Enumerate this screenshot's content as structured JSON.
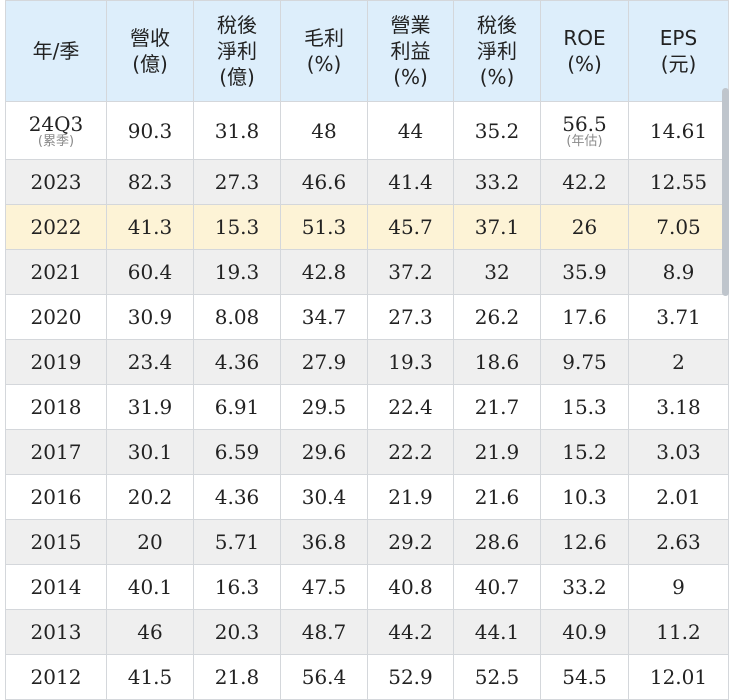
{
  "headers": [
    [
      "年/季"
    ],
    [
      "營收",
      "(億)"
    ],
    [
      "稅後",
      "淨利",
      "(億)"
    ],
    [
      "毛利",
      "(%)"
    ],
    [
      "營業",
      "利益",
      "(%)"
    ],
    [
      "稅後",
      "淨利",
      "(%)"
    ],
    [
      "ROE",
      "(%)"
    ],
    [
      "EPS",
      "(元)"
    ]
  ],
  "first_row": {
    "period": "24Q3",
    "period_note": "(累季)",
    "revenue": "90.3",
    "net_income": "31.8",
    "gross_margin": "48",
    "operating_margin": "44",
    "net_margin": "35.2",
    "roe": "56.5",
    "roe_note": "(年估)",
    "eps": "14.61"
  },
  "rows": [
    [
      "2023",
      "82.3",
      "27.3",
      "46.6",
      "41.4",
      "33.2",
      "42.2",
      "12.55"
    ],
    [
      "2022",
      "41.3",
      "15.3",
      "51.3",
      "45.7",
      "37.1",
      "26",
      "7.05"
    ],
    [
      "2021",
      "60.4",
      "19.3",
      "42.8",
      "37.2",
      "32",
      "35.9",
      "8.9"
    ],
    [
      "2020",
      "30.9",
      "8.08",
      "34.7",
      "27.3",
      "26.2",
      "17.6",
      "3.71"
    ],
    [
      "2019",
      "23.4",
      "4.36",
      "27.9",
      "19.3",
      "18.6",
      "9.75",
      "2"
    ],
    [
      "2018",
      "31.9",
      "6.91",
      "29.5",
      "22.4",
      "21.7",
      "15.3",
      "3.18"
    ],
    [
      "2017",
      "30.1",
      "6.59",
      "29.6",
      "22.2",
      "21.9",
      "15.2",
      "3.03"
    ],
    [
      "2016",
      "20.2",
      "4.36",
      "30.4",
      "21.9",
      "21.6",
      "10.3",
      "2.01"
    ],
    [
      "2015",
      "20",
      "5.71",
      "36.8",
      "29.2",
      "28.6",
      "12.6",
      "2.63"
    ],
    [
      "2014",
      "40.1",
      "16.3",
      "47.5",
      "40.8",
      "40.7",
      "33.2",
      "9"
    ],
    [
      "2013",
      "46",
      "20.3",
      "48.7",
      "44.2",
      "44.1",
      "40.9",
      "11.2"
    ],
    [
      "2012",
      "41.5",
      "21.8",
      "56.4",
      "52.9",
      "52.5",
      "54.5",
      "12.01"
    ]
  ],
  "highlight_row": "2022",
  "colors": {
    "header_bg": "#ddeefb",
    "alt_row_bg": "#efefef",
    "highlight_bg": "#fdf3d6",
    "grid": "#d4d7db"
  }
}
